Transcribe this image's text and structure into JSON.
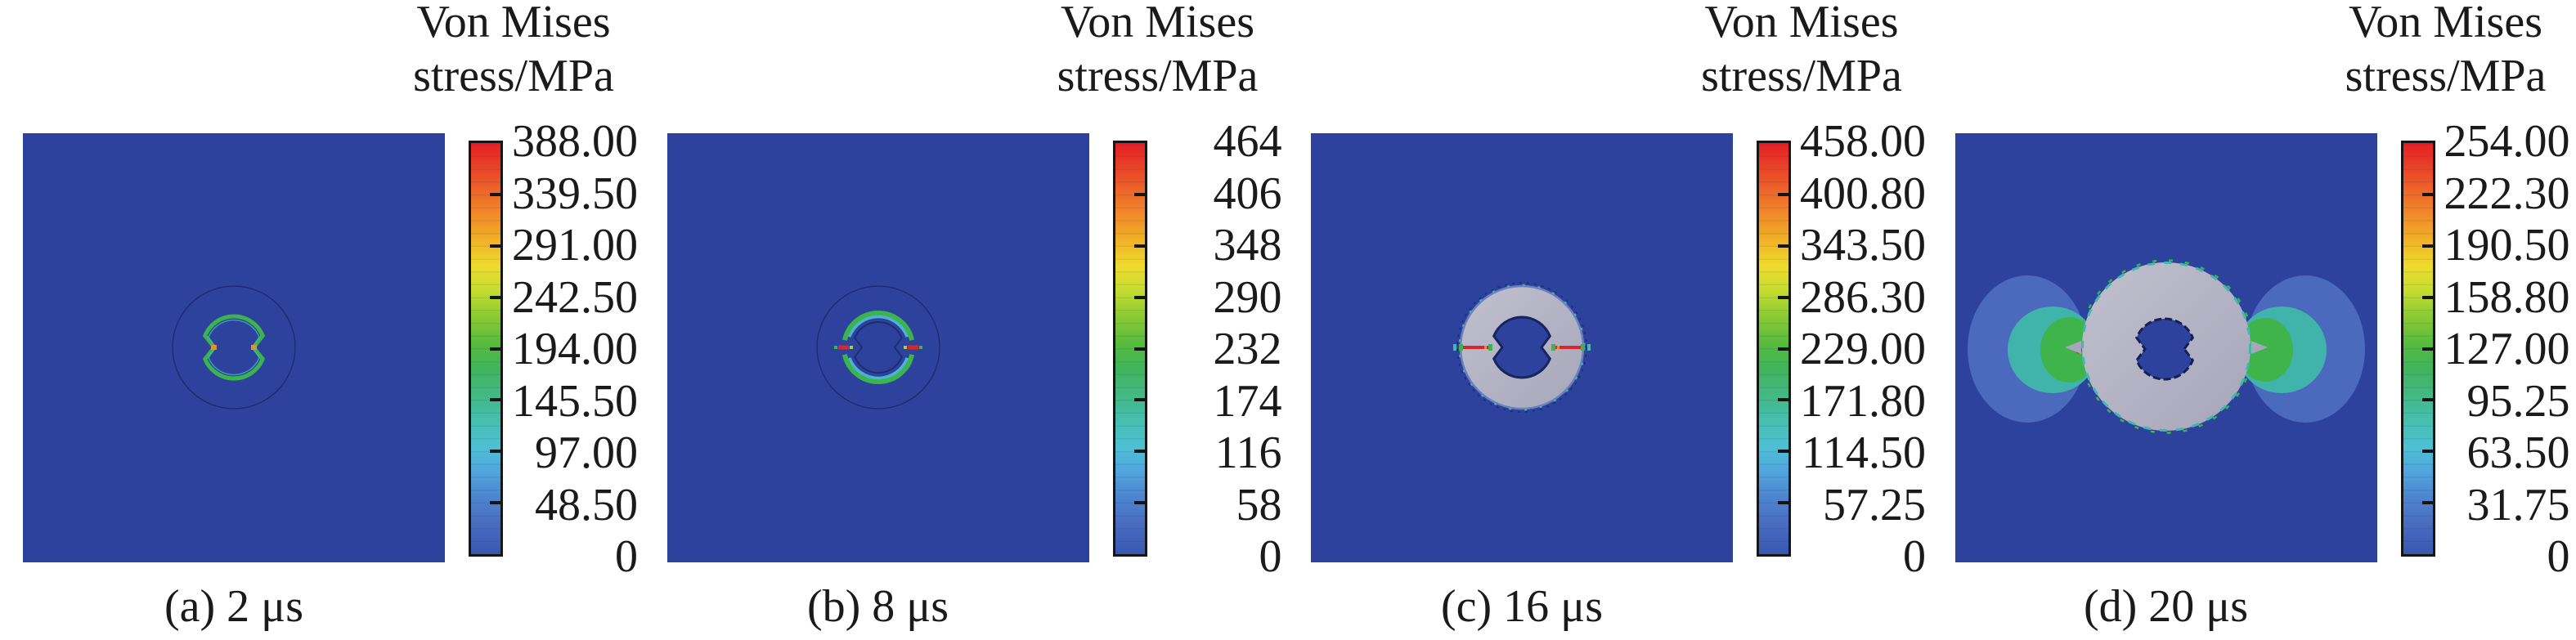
{
  "figure": {
    "title_line1": "Von Mises",
    "title_line2": "stress/MPa",
    "panels": [
      {
        "id": "a",
        "caption": "(a) 2 μs",
        "time_label": "2 μs",
        "figure_type": "incipient-contour",
        "colorbar_labels": [
          "388.00",
          "339.50",
          "291.00",
          "242.50",
          "194.00",
          "145.50",
          "97.00",
          "48.50",
          "0"
        ]
      },
      {
        "id": "b",
        "caption": "(b) 8 μs",
        "time_label": "8 μs",
        "figure_type": "stress-ring",
        "colorbar_labels": [
          "464",
          "406",
          "348",
          "290",
          "232",
          "174",
          "116",
          "58",
          "0"
        ]
      },
      {
        "id": "c",
        "caption": "(c) 16 μs",
        "time_label": "16 μs",
        "figure_type": "plastic-disk",
        "colorbar_labels": [
          "458.00",
          "400.80",
          "343.50",
          "286.30",
          "229.00",
          "171.80",
          "114.50",
          "57.25",
          "0"
        ]
      },
      {
        "id": "d",
        "caption": "(d) 20 μs",
        "time_label": "20 μs",
        "figure_type": "disk-with-lobes",
        "colorbar_labels": [
          "254.00",
          "222.30",
          "190.50",
          "158.80",
          "127.00",
          "95.25",
          "63.50",
          "31.75",
          "0"
        ]
      }
    ]
  },
  "colors": {
    "domain_bg": "#2c429c",
    "outline_navy": "#1d2b6e",
    "hole_outline": "#141f55",
    "contour_green": "#3cb44d",
    "contour_teal": "#43b8b0",
    "contour_cyan": "#4fb2d4",
    "stress_red": "#d9262b",
    "stress_orange": "#e0922e",
    "stress_yellow_green": "#a8d02f",
    "disk_gray_light": "#c1c0ce",
    "disk_gray_dark": "#a7a6ba",
    "disk_rim": "#6b80bf",
    "wing_blue": "#4b6abd",
    "wing_teal": "#40b3ab",
    "wing_green": "#3eb44b",
    "text": "#1a1a1a",
    "colorbar_border": "#161616",
    "colorbar_stops": [
      "#e41f25 0%",
      "#ea4f29 8%",
      "#f0822a 16%",
      "#f0ad28 23%",
      "#eedc2c 30%",
      "#c3dd30 36%",
      "#8ccb33 42%",
      "#55ba3e 49%",
      "#3fb45b 55%",
      "#43b988 62%",
      "#47bfb2 68%",
      "#4dc0d4 74%",
      "#51a4dd 80%",
      "#4d86cf 86%",
      "#4a6ec2 92%",
      "#3a57b2 100%"
    ]
  },
  "chart_data": [
    {
      "type": "heatmap",
      "panel": "a",
      "title": "Von Mises stress/MPa",
      "caption": "(a) 2 μs",
      "time_us": 2,
      "units": "MPa",
      "value_range": [
        0,
        388
      ],
      "colorbar_ticks": [
        388.0,
        339.5,
        291.0,
        242.5,
        194.0,
        145.5,
        97.0,
        48.5,
        0
      ],
      "tick_labels": [
        "388.00",
        "339.50",
        "291.00",
        "242.50",
        "194.00",
        "145.50",
        "97.00",
        "48.50",
        "0"
      ],
      "legend_position": "right",
      "field_summary": "Uniform near-zero stress field (blue square) with a thin circular material interface and a small green peanut-shaped stress contour around the central cavity"
    },
    {
      "type": "heatmap",
      "panel": "b",
      "title": "Von Mises stress/MPa",
      "caption": "(b) 8 μs",
      "time_us": 8,
      "units": "MPa",
      "value_range": [
        0,
        464
      ],
      "colorbar_ticks": [
        464,
        406,
        348,
        290,
        232,
        174,
        116,
        58,
        0
      ],
      "tick_labels": [
        "464",
        "406",
        "348",
        "290",
        "232",
        "174",
        "116",
        "58",
        "0"
      ],
      "legend_position": "right",
      "field_summary": "Green/cyan circular stress ring around the cavity with red high-stress spots at the left and right equator gaps"
    },
    {
      "type": "heatmap",
      "panel": "c",
      "title": "Von Mises stress/MPa",
      "caption": "(c) 16 μs",
      "time_us": 16,
      "units": "MPa",
      "value_range": [
        0,
        458
      ],
      "colorbar_ticks": [
        458.0,
        400.8,
        343.5,
        286.3,
        229.0,
        171.8,
        114.5,
        57.25,
        0
      ],
      "tick_labels": [
        "458.00",
        "400.80",
        "343.50",
        "286.30",
        "229.00",
        "171.80",
        "114.50",
        "57.25",
        "0"
      ],
      "legend_position": "right",
      "field_summary": "Gray plastic-zone annulus filling the circular region around the peanut-shaped cavity, with red radial crack lines at the left and right equator"
    },
    {
      "type": "heatmap",
      "panel": "d",
      "title": "Von Mises stress/MPa",
      "caption": "(d) 20 μs",
      "time_us": 20,
      "units": "MPa",
      "value_range": [
        0,
        254
      ],
      "colorbar_ticks": [
        254.0,
        222.3,
        190.5,
        158.8,
        127.0,
        95.25,
        63.5,
        31.75,
        0
      ],
      "tick_labels": [
        "254.00",
        "222.30",
        "190.50",
        "158.80",
        "127.00",
        "95.25",
        "63.50",
        "31.75",
        "0"
      ],
      "legend_position": "right",
      "field_summary": "Large gray plastic zone around the peanut-shaped cavity flanked by layered blue/teal/green stress lobes on the left and right sides with a small red hot spot at the left lobe tip"
    }
  ]
}
